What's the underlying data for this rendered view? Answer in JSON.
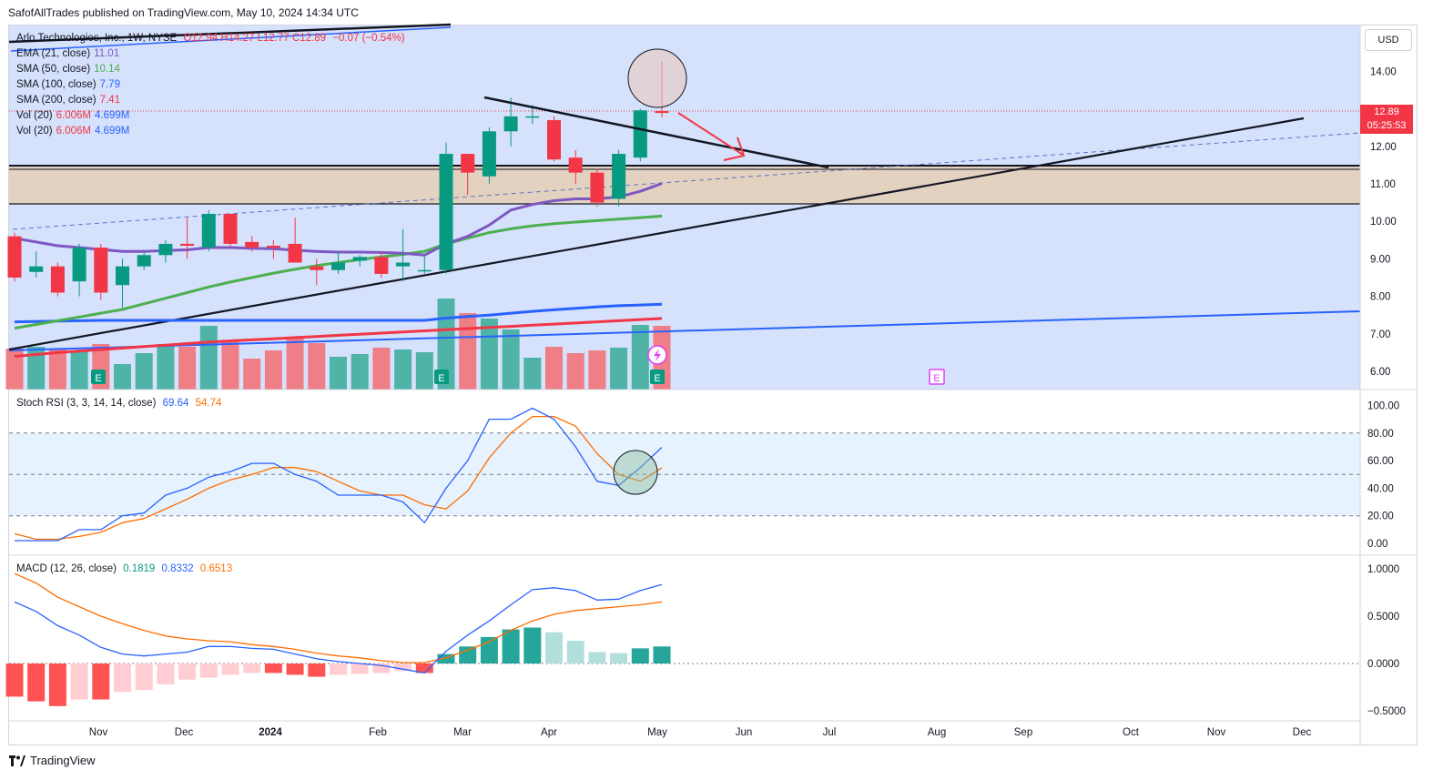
{
  "header": {
    "text": "SafofAllTrades published on TradingView.com, May 10, 2024 14:34 UTC"
  },
  "footer": {
    "brand": "TradingView"
  },
  "symbol": {
    "name": "Arlo Technologies, Inc., 1W, NYSE",
    "ohlc": "O12.94 H14.27 L12.77 C12.89",
    "change": "−0.07 (−0.54%)",
    "currency": "USD",
    "last_price": "12.89",
    "countdown": "05:25:53"
  },
  "indicators": [
    {
      "label": "EMA (21, close)",
      "value": "11.01",
      "color": "#7e57c2"
    },
    {
      "label": "SMA (50, close)",
      "value": "10.14",
      "color": "#4caf50"
    },
    {
      "label": "SMA (100, close)",
      "value": "7.79",
      "color": "#2962ff"
    },
    {
      "label": "SMA (200, close)",
      "value": "7.41",
      "color": "#f23645"
    },
    {
      "label": "Vol (20)",
      "value": "6.006M",
      "value2": "4.699M",
      "color": "#f23645",
      "color2": "#2962ff"
    },
    {
      "label": "Vol (20)",
      "value": "6.006M",
      "value2": "4.699M",
      "color": "#f23645",
      "color2": "#2962ff"
    }
  ],
  "stoch": {
    "label": "Stoch RSI (3, 3, 14, 14, close)",
    "k": "69.64",
    "d": "54.74",
    "k_color": "#2962ff",
    "d_color": "#ff6d00"
  },
  "macd_legend": {
    "label": "MACD (12, 26, close)",
    "hist": "0.1819",
    "macd": "0.8332",
    "signal": "0.6513",
    "hist_color": "#089981",
    "macd_color": "#2962ff",
    "signal_color": "#ff6d00"
  },
  "axes": {
    "price_ticks": [
      "14.00",
      "13.00",
      "12.00",
      "11.00",
      "10.00",
      "9.00",
      "8.00",
      "7.00",
      "6.00"
    ],
    "stoch_ticks": [
      "100.00",
      "80.00",
      "60.00",
      "40.00",
      "20.00",
      "0.00"
    ],
    "macd_ticks": [
      "1.0000",
      "0.5000",
      "0.0000",
      "−0.5000"
    ],
    "time_labels": [
      "Nov",
      "Dec",
      "2024",
      "Feb",
      "Mar",
      "Apr",
      "May",
      "Jun",
      "Jul",
      "Aug",
      "Sep",
      "Oct",
      "Nov",
      "Dec"
    ]
  },
  "chart_data": {
    "type": "candlestick",
    "interval": "1W",
    "price_ylim": [
      5.5,
      14.7
    ],
    "candles": [
      {
        "o": 9.6,
        "h": 9.7,
        "l": 8.4,
        "c": 8.5
      },
      {
        "o": 8.65,
        "h": 9.2,
        "l": 8.5,
        "c": 8.8
      },
      {
        "o": 8.8,
        "h": 8.9,
        "l": 8.0,
        "c": 8.1
      },
      {
        "o": 8.4,
        "h": 9.4,
        "l": 8.0,
        "c": 9.3
      },
      {
        "o": 9.3,
        "h": 9.4,
        "l": 7.9,
        "c": 8.1
      },
      {
        "o": 8.3,
        "h": 9.0,
        "l": 7.7,
        "c": 8.8
      },
      {
        "o": 8.8,
        "h": 9.2,
        "l": 8.7,
        "c": 9.1
      },
      {
        "o": 9.1,
        "h": 9.5,
        "l": 8.9,
        "c": 9.4
      },
      {
        "o": 9.4,
        "h": 10.1,
        "l": 9.0,
        "c": 9.35
      },
      {
        "o": 9.3,
        "h": 10.3,
        "l": 9.2,
        "c": 10.2
      },
      {
        "o": 10.2,
        "h": 10.2,
        "l": 9.3,
        "c": 9.4
      },
      {
        "o": 9.45,
        "h": 9.6,
        "l": 9.2,
        "c": 9.3
      },
      {
        "o": 9.35,
        "h": 9.5,
        "l": 9.0,
        "c": 9.3
      },
      {
        "o": 9.4,
        "h": 10.1,
        "l": 8.9,
        "c": 8.9
      },
      {
        "o": 8.8,
        "h": 9.0,
        "l": 8.3,
        "c": 8.7
      },
      {
        "o": 8.7,
        "h": 9.2,
        "l": 8.6,
        "c": 8.9
      },
      {
        "o": 8.95,
        "h": 9.1,
        "l": 8.8,
        "c": 9.05
      },
      {
        "o": 9.05,
        "h": 9.2,
        "l": 8.5,
        "c": 8.6
      },
      {
        "o": 8.8,
        "h": 9.8,
        "l": 8.4,
        "c": 8.9
      },
      {
        "o": 8.7,
        "h": 9.1,
        "l": 8.6,
        "c": 8.7
      },
      {
        "o": 8.7,
        "h": 12.1,
        "l": 8.6,
        "c": 11.8
      },
      {
        "o": 11.8,
        "h": 11.8,
        "l": 10.7,
        "c": 11.3
      },
      {
        "o": 11.2,
        "h": 12.5,
        "l": 11.0,
        "c": 12.4
      },
      {
        "o": 12.4,
        "h": 13.3,
        "l": 12.0,
        "c": 12.8
      },
      {
        "o": 12.8,
        "h": 13.1,
        "l": 12.6,
        "c": 12.8
      },
      {
        "o": 12.7,
        "h": 12.8,
        "l": 11.6,
        "c": 11.65
      },
      {
        "o": 11.7,
        "h": 11.9,
        "l": 11.0,
        "c": 11.3
      },
      {
        "o": 11.3,
        "h": 11.4,
        "l": 10.4,
        "c": 10.5
      },
      {
        "o": 10.6,
        "h": 11.9,
        "l": 10.4,
        "c": 11.8
      },
      {
        "o": 11.7,
        "h": 13.0,
        "l": 11.6,
        "c": 12.96
      },
      {
        "o": 12.94,
        "h": 14.27,
        "l": 12.77,
        "c": 12.89
      }
    ],
    "ema21": [
      9.55,
      9.45,
      9.35,
      9.3,
      9.25,
      9.2,
      9.2,
      9.22,
      9.24,
      9.3,
      9.3,
      9.28,
      9.27,
      9.23,
      9.2,
      9.18,
      9.18,
      9.17,
      9.15,
      9.1,
      9.4,
      9.6,
      9.9,
      10.3,
      10.45,
      10.55,
      10.6,
      10.6,
      10.65,
      10.8,
      11.01
    ],
    "sma50": [
      7.15,
      7.25,
      7.35,
      7.45,
      7.55,
      7.65,
      7.8,
      7.95,
      8.1,
      8.25,
      8.38,
      8.5,
      8.62,
      8.72,
      8.82,
      8.9,
      8.98,
      9.05,
      9.12,
      9.2,
      9.4,
      9.55,
      9.7,
      9.8,
      9.88,
      9.94,
      9.98,
      10.02,
      10.06,
      10.1,
      10.14
    ],
    "sma100": [
      7.32,
      7.33,
      7.34,
      7.35,
      7.36,
      7.36,
      7.36,
      7.36,
      7.36,
      7.36,
      7.36,
      7.36,
      7.36,
      7.36,
      7.36,
      7.36,
      7.36,
      7.36,
      7.36,
      7.36,
      7.42,
      7.46,
      7.5,
      7.55,
      7.6,
      7.64,
      7.68,
      7.72,
      7.75,
      7.77,
      7.79
    ],
    "sma200": [
      6.4,
      6.45,
      6.5,
      6.54,
      6.58,
      6.62,
      6.66,
      6.7,
      6.74,
      6.78,
      6.81,
      6.84,
      6.87,
      6.9,
      6.93,
      6.96,
      6.99,
      7.02,
      7.05,
      7.08,
      7.11,
      7.14,
      7.17,
      7.2,
      7.23,
      7.26,
      7.29,
      7.32,
      7.35,
      7.38,
      7.41
    ],
    "volume_rel": [
      0.45,
      0.47,
      0.44,
      0.42,
      0.5,
      0.28,
      0.4,
      0.5,
      0.47,
      0.7,
      0.53,
      0.34,
      0.43,
      0.57,
      0.51,
      0.36,
      0.39,
      0.46,
      0.44,
      0.41,
      1.0,
      0.84,
      0.78,
      0.66,
      0.35,
      0.47,
      0.4,
      0.43,
      0.46,
      0.71,
      0.7
    ],
    "stoch_k": [
      2,
      2,
      2,
      10,
      10,
      20,
      22,
      35,
      40,
      48,
      52,
      58,
      58,
      50,
      45,
      35,
      35,
      35,
      30,
      15,
      40,
      60,
      90,
      90,
      98,
      90,
      70,
      45,
      42,
      55,
      69.64
    ],
    "stoch_d": [
      7,
      3,
      3,
      5,
      8,
      15,
      18,
      25,
      32,
      40,
      46,
      50,
      55,
      55,
      52,
      45,
      38,
      35,
      35,
      28,
      25,
      38,
      62,
      80,
      92,
      92,
      85,
      65,
      50,
      45,
      54.74
    ],
    "macd_hist": [
      -0.35,
      -0.4,
      -0.45,
      -0.38,
      -0.38,
      -0.3,
      -0.28,
      -0.22,
      -0.17,
      -0.15,
      -0.12,
      -0.1,
      -0.1,
      -0.12,
      -0.14,
      -0.12,
      -0.11,
      -0.1,
      -0.08,
      -0.1,
      0.1,
      0.18,
      0.28,
      0.36,
      0.38,
      0.33,
      0.24,
      0.12,
      0.11,
      0.16,
      0.18
    ],
    "macd_line": [
      0.65,
      0.55,
      0.4,
      0.3,
      0.17,
      0.1,
      0.08,
      0.1,
      0.12,
      0.18,
      0.18,
      0.16,
      0.15,
      0.1,
      0.05,
      0.02,
      0.0,
      -0.02,
      -0.06,
      -0.1,
      0.13,
      0.3,
      0.45,
      0.62,
      0.78,
      0.8,
      0.77,
      0.67,
      0.68,
      0.77,
      0.8332
    ],
    "macd_signal": [
      0.95,
      0.85,
      0.7,
      0.6,
      0.5,
      0.42,
      0.35,
      0.29,
      0.26,
      0.24,
      0.23,
      0.2,
      0.18,
      0.15,
      0.11,
      0.08,
      0.06,
      0.03,
      0.01,
      0.01,
      0.06,
      0.14,
      0.23,
      0.35,
      0.45,
      0.52,
      0.56,
      0.58,
      0.6,
      0.62,
      0.6513
    ]
  }
}
